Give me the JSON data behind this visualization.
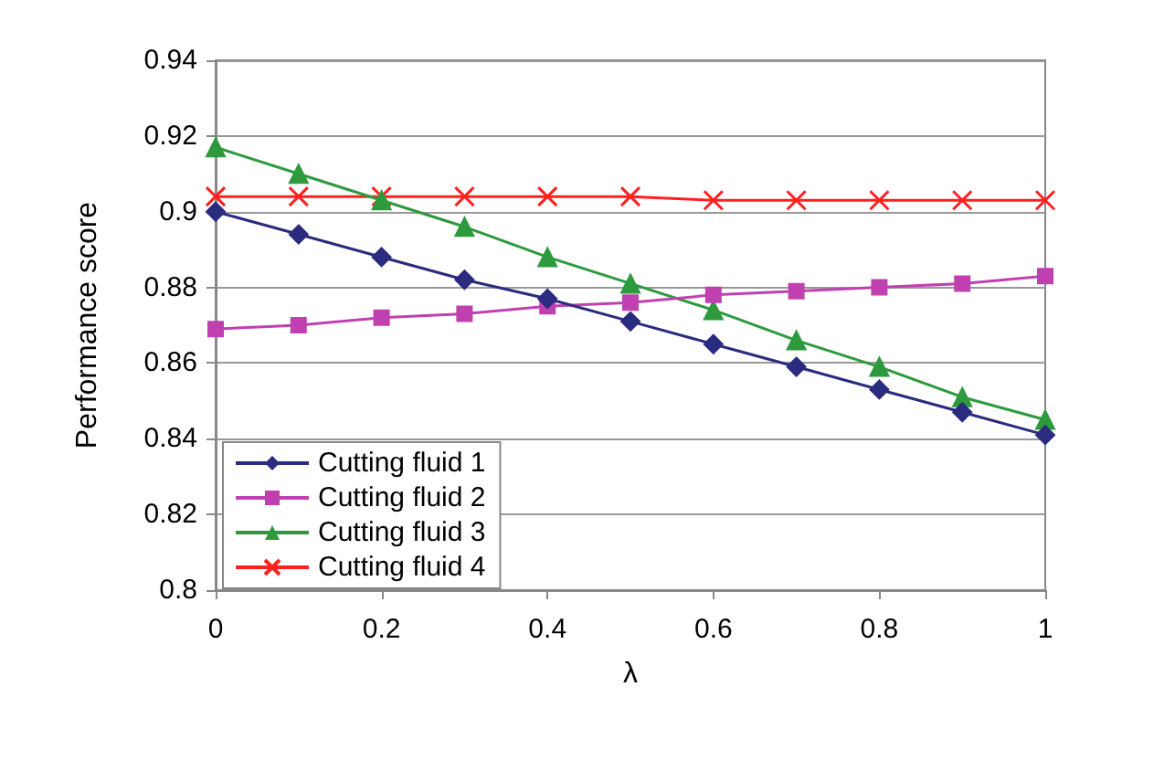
{
  "chart_data": {
    "type": "line",
    "xlabel": "λ",
    "ylabel": "Performance score",
    "x": [
      0,
      0.1,
      0.2,
      0.3,
      0.4,
      0.5,
      0.6,
      0.7,
      0.8,
      0.9,
      1
    ],
    "xlim": [
      0,
      1
    ],
    "xticks": [
      0,
      0.2,
      0.4,
      0.6,
      0.8,
      1
    ],
    "ylim": [
      0.8,
      0.94
    ],
    "yticks": [
      0.8,
      0.82,
      0.84,
      0.86,
      0.88,
      0.9,
      0.92,
      0.94
    ],
    "grid": "y",
    "legend": "bottom left",
    "line_style": "solid",
    "series": [
      {
        "name": "Cutting fluid 1",
        "color": "#2b2b7f",
        "marker": "diamond",
        "values": [
          0.9,
          0.894,
          0.888,
          0.882,
          0.877,
          0.871,
          0.865,
          0.859,
          0.853,
          0.847,
          0.841
        ]
      },
      {
        "name": "Cutting fluid 2",
        "color": "#c040b0",
        "marker": "square",
        "values": [
          0.869,
          0.87,
          0.872,
          0.873,
          0.875,
          0.876,
          0.878,
          0.879,
          0.88,
          0.881,
          0.883
        ]
      },
      {
        "name": "Cutting fluid 3",
        "color": "#2e9a3e",
        "marker": "triangle",
        "values": [
          0.917,
          0.91,
          0.903,
          0.896,
          0.888,
          0.881,
          0.874,
          0.866,
          0.859,
          0.851,
          0.845
        ]
      },
      {
        "name": "Cutting fluid 4",
        "color": "#ff2020",
        "marker": "cross",
        "values": [
          0.904,
          0.904,
          0.904,
          0.904,
          0.904,
          0.904,
          0.903,
          0.903,
          0.903,
          0.903,
          0.903
        ]
      }
    ]
  }
}
